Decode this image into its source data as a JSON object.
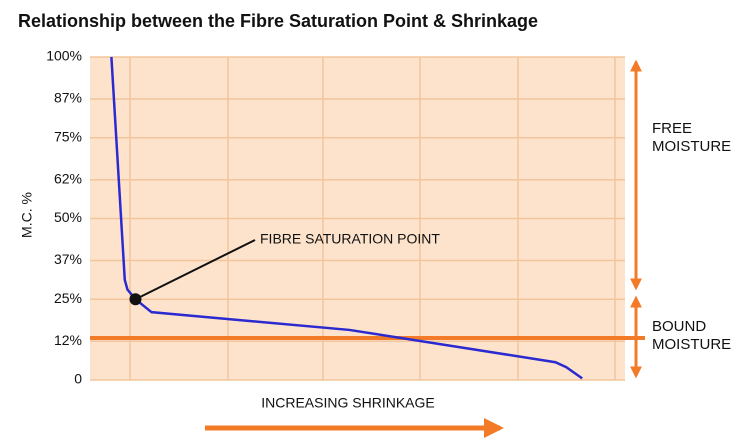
{
  "chart_data": {
    "type": "line",
    "title": "Relationship between the  Fibre Saturation Point & Shrinkage",
    "y_label": "M.C. %",
    "x_label": "INCREASING SHRINKAGE",
    "x": [
      4,
      6.5,
      7,
      8.5,
      11.5,
      48.5,
      87,
      89,
      92
    ],
    "series": [
      {
        "color": "#2a2ad0",
        "values": [
          100,
          31,
          28,
          25,
          21,
          15.5,
          5.5,
          4,
          0.5
        ]
      }
    ],
    "xlim": [
      0,
      100
    ],
    "ylim": [
      0,
      100
    ],
    "yticks": [
      0,
      {
        "value": 12,
        "label": "12%"
      },
      {
        "value": 25,
        "label": "25%"
      },
      {
        "value": 37,
        "label": "37%"
      },
      {
        "value": 50,
        "label": "50%"
      },
      {
        "value": 62,
        "label": "62%"
      },
      {
        "value": 75,
        "label": "75%"
      },
      {
        "value": 87,
        "label": "87%"
      },
      {
        "value": 100,
        "label": "100%"
      }
    ],
    "grid": true,
    "reference_line": {
      "value": 13,
      "color": "#f37a27"
    },
    "point": {
      "label": "FIBRE SATURATION POINT",
      "x": 8.5,
      "y": 25
    },
    "regions": [
      {
        "label": "FREE MOISTURE"
      },
      {
        "label": "BOUND MOISTURE"
      }
    ]
  }
}
